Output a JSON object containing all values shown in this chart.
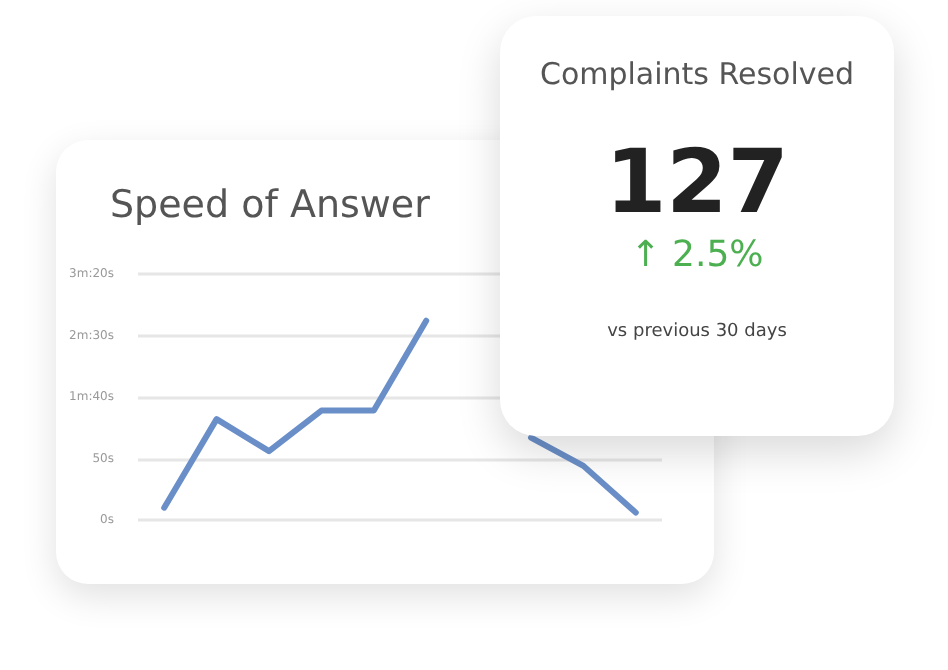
{
  "chart_data": [
    {
      "type": "line",
      "title": "Speed of Answer",
      "categories": [
        null,
        null,
        null,
        null,
        null,
        null,
        null,
        null,
        null,
        null
      ],
      "series": [
        {
          "color": "#6a8fc8",
          "values": [
            10,
            82,
            56,
            89,
            89,
            162,
            null,
            67,
            44,
            6
          ]
        }
      ],
      "ylim": [
        0,
        200
      ],
      "yticks": [
        {
          "value": 0,
          "label": "0s"
        },
        {
          "value": 50,
          "label": "50s"
        },
        {
          "value": 100,
          "label": "1m:40s"
        },
        {
          "value": 150,
          "label": "2m:30s"
        },
        {
          "value": 200,
          "label": "3m:20s"
        }
      ],
      "grid": "y",
      "marker": "none",
      "line_style": "solid"
    },
    {
      "type": "other",
      "title": "Complaints Resolved",
      "annotations": [
        "127",
        "↑ 2.5%",
        "vs previous 30 days"
      ]
    }
  ]
}
